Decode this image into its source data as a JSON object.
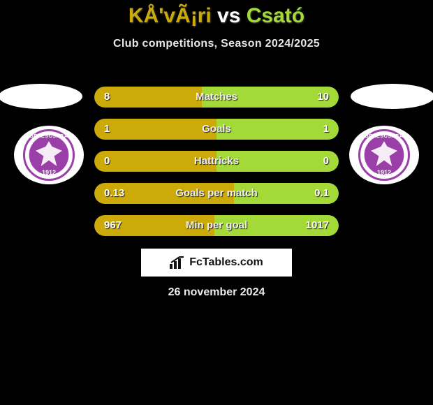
{
  "colors": {
    "player1": "#cbaa09",
    "player2": "#a3da38",
    "bar_bg": "#2f2f2f",
    "bg": "#000000",
    "text": "#ffffff"
  },
  "title": {
    "p1_name": "KÅ'vÃ¡ri",
    "vs": "vs",
    "p2_name": "Csató"
  },
  "subtitle": "Club competitions, Season 2024/2025",
  "crest": {
    "top_text": "BÉKÉSCSABA",
    "ribbon_text": "1912 ELŐRE SE",
    "year": "1912"
  },
  "footer": {
    "brand": "FcTables.com"
  },
  "date": "26 november 2024",
  "stats": [
    {
      "label": "Matches",
      "v1": "8",
      "v2": "10",
      "p1_pct": 44
    },
    {
      "label": "Goals",
      "v1": "1",
      "v2": "1",
      "p1_pct": 50
    },
    {
      "label": "Hattricks",
      "v1": "0",
      "v2": "0",
      "p1_pct": 50
    },
    {
      "label": "Goals per match",
      "v1": "0.13",
      "v2": "0.1",
      "p1_pct": 57
    },
    {
      "label": "Min per goal",
      "v1": "967",
      "v2": "1017",
      "p1_pct": 49
    }
  ]
}
